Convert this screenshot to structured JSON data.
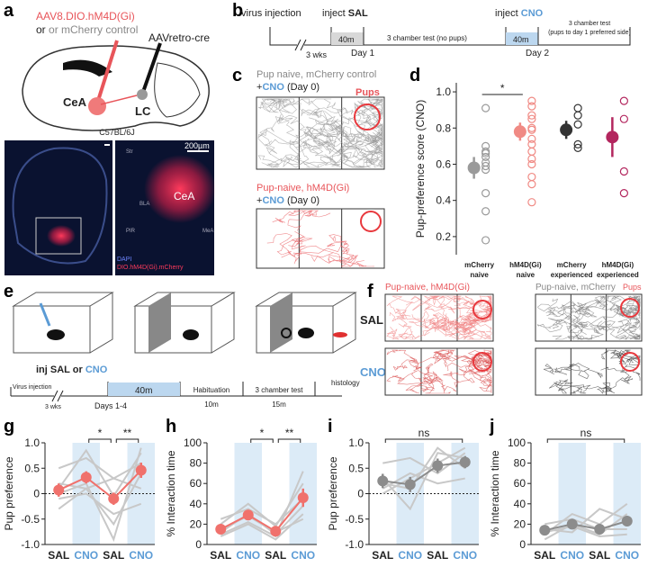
{
  "panel_labels": [
    "a",
    "b",
    "c",
    "d",
    "e",
    "f",
    "g",
    "h",
    "i",
    "j"
  ],
  "panel_a": {
    "virus": "AAV8.DIO.hM4D(Gi)",
    "control": "or mCherry control",
    "retro": "AAVretro-cre",
    "cea": "CeA",
    "lc": "LC",
    "strain": "C57BL/6J",
    "scale": "200µm",
    "str": "Str",
    "bla": "BLA",
    "cea2": "CeA",
    "pir": "PIR",
    "mea": "MeA",
    "dapi": "DAPI",
    "stain": "DIO.hM4D(Gi).mCherry"
  },
  "panel_b": {
    "virus_injection": "virus injection",
    "inject1": "inject ",
    "sal": "SAL",
    "wks": "3 wks",
    "m40a": "40m",
    "day1": "Day 1",
    "test1": "3 chamber test (no pups)",
    "inject2": "inject ",
    "cno": "CNO",
    "m40b": "40m",
    "day2": "Day 2",
    "test2a": "3 chamber test",
    "test2b": "(pups to day 1 preferred side)"
  },
  "panel_c": {
    "title1": "Pup naive, mCherry control",
    "plus1": "+",
    "cno1": "CNO",
    "day1": " (Day 0)",
    "pups": "Pups",
    "title2": "Pup-naive, hM4D(Gi)",
    "plus2": "+",
    "cno2": "CNO",
    "day2": " (Day 0)"
  },
  "panel_e": {
    "inj": "inj SAL or ",
    "cno": "CNO",
    "virus": "Virus injection",
    "wks": "3 wks",
    "m40": "40m",
    "days": "Days 1-4",
    "hab": "Habituation",
    "m10": "10m",
    "test": "3 chamber test",
    "m15": "15m",
    "hist": "histology"
  },
  "panel_f": {
    "title1": "Pup-naive, hM4D(Gi)",
    "title2": "Pup-naive, mCherry",
    "pups": "Pups",
    "sal": "SAL",
    "cno": "CNO"
  },
  "chart_data": [
    {
      "type": "strip",
      "ylabel": "Pup-preference score (CNO)",
      "categories": [
        [
          "mCherry",
          "naive"
        ],
        [
          "hM4D(Gi)",
          "naive"
        ],
        [
          "mCherry",
          "experienced"
        ],
        [
          "hM4D(Gi)",
          "experienced"
        ]
      ],
      "colors": [
        "#9a9a9a",
        "#f08a84",
        "#333333",
        "#b3265e"
      ],
      "means": [
        0.58,
        0.78,
        0.79,
        0.75
      ],
      "errors": [
        0.06,
        0.05,
        0.05,
        0.11
      ],
      "points": [
        [
          0.91,
          0.7,
          0.67,
          0.66,
          0.64,
          0.61,
          0.59,
          0.57,
          0.44,
          0.34,
          0.18
        ],
        [
          0.95,
          0.92,
          0.87,
          0.85,
          0.8,
          0.79,
          0.74,
          0.71,
          0.67,
          0.63,
          0.6,
          0.53,
          0.49,
          0.39
        ],
        [
          0.91,
          0.87,
          0.82,
          0.71,
          0.69
        ],
        [
          0.95,
          0.85,
          0.56,
          0.44
        ]
      ],
      "ylim": [
        0.1,
        1.05
      ],
      "yticks": [
        0.2,
        0.4,
        0.6,
        0.8,
        {
          "value": 1,
          "label": "1.0"
        }
      ],
      "annotations": [
        {
          "text": "*",
          "from": 0,
          "to": 1
        }
      ]
    },
    {
      "type": "paired",
      "ylabel": "Pup preference",
      "categories": [
        "SAL",
        "CNO",
        "SAL",
        "CNO"
      ],
      "category_colors": [
        "#222222",
        "#5b9bd5",
        "#222222",
        "#5b9bd5"
      ],
      "highlight_categories": [
        1,
        3
      ],
      "line_color": "#c8c8c8",
      "mean_color": "#f0716c",
      "lines": [
        [
          0.1,
          0.85,
          -0.05,
          0.8
        ],
        [
          0.5,
          0.7,
          0.3,
          0.6
        ],
        [
          -0.3,
          0.1,
          -0.6,
          0.4
        ],
        [
          0.0,
          0.2,
          -0.9,
          0.9
        ],
        [
          0.2,
          0.1,
          0.3,
          0.1
        ],
        [
          -0.1,
          0.0,
          -0.4,
          -0.2
        ]
      ],
      "means": [
        0.07,
        0.32,
        -0.1,
        0.46
      ],
      "errors": [
        0.13,
        0.12,
        0.12,
        0.15
      ],
      "ylim": [
        -1,
        1
      ],
      "yticks": [
        {
          "value": -1,
          "label": "-1.0"
        },
        -0.5,
        0,
        0.5,
        {
          "value": 1,
          "label": "1.0"
        }
      ],
      "reference_line": 0,
      "annotations": [
        {
          "text": "*",
          "from": 1,
          "to": 2
        },
        {
          "text": "**",
          "from": 2,
          "to": 3
        }
      ]
    },
    {
      "type": "paired",
      "ylabel": "% Interaction time",
      "categories": [
        "SAL",
        "CNO",
        "SAL",
        "CNO"
      ],
      "category_colors": [
        "#222222",
        "#5b9bd5",
        "#222222",
        "#5b9bd5"
      ],
      "highlight_categories": [
        1,
        3
      ],
      "line_color": "#c8c8c8",
      "mean_color": "#f0716c",
      "lines": [
        [
          10,
          22,
          8,
          72
        ],
        [
          20,
          40,
          18,
          60
        ],
        [
          12,
          30,
          10,
          38
        ],
        [
          25,
          35,
          20,
          45
        ],
        [
          8,
          20,
          5,
          30
        ],
        [
          15,
          28,
          12,
          25
        ]
      ],
      "means": [
        15,
        29,
        13,
        46
      ],
      "errors": [
        3,
        5,
        3,
        9
      ],
      "ylim": [
        0,
        100
      ],
      "yticks": [
        0,
        20,
        40,
        60,
        80,
        100
      ],
      "annotations": [
        {
          "text": "*",
          "from": 1,
          "to": 2
        },
        {
          "text": "**",
          "from": 2,
          "to": 3
        }
      ]
    },
    {
      "type": "paired",
      "ylabel": "Pup preference",
      "categories": [
        "SAL",
        "CNO",
        "SAL",
        "CNO"
      ],
      "category_colors": [
        "#222222",
        "#5b9bd5",
        "#222222",
        "#5b9bd5"
      ],
      "highlight_categories": [
        1,
        3
      ],
      "line_color": "#c8c8c8",
      "mean_color": "#8c8c8c",
      "lines": [
        [
          0.6,
          0.7,
          0.4,
          0.8
        ],
        [
          0.3,
          -0.3,
          0.8,
          0.7
        ],
        [
          0.0,
          0.3,
          0.6,
          0.9
        ],
        [
          0.2,
          0.1,
          0.9,
          0.5
        ],
        [
          0.1,
          0.4,
          0.2,
          0.3
        ]
      ],
      "means": [
        0.25,
        0.18,
        0.55,
        0.62
      ],
      "errors": [
        0.14,
        0.15,
        0.14,
        0.12
      ],
      "ylim": [
        -1,
        1
      ],
      "yticks": [
        {
          "value": -1,
          "label": "-1.0"
        },
        -0.5,
        0,
        0.5,
        {
          "value": 1,
          "label": "1.0"
        }
      ],
      "reference_line": 0,
      "annotations": [
        {
          "text": "ns",
          "from": 0,
          "to": 3
        }
      ]
    },
    {
      "type": "paired",
      "ylabel": "% Interaction time",
      "categories": [
        "SAL",
        "CNO",
        "SAL",
        "CNO"
      ],
      "category_colors": [
        "#222222",
        "#5b9bd5",
        "#222222",
        "#5b9bd5"
      ],
      "highlight_categories": [
        1,
        3
      ],
      "line_color": "#c8c8c8",
      "mean_color": "#8c8c8c",
      "lines": [
        [
          10,
          30,
          20,
          40
        ],
        [
          15,
          12,
          35,
          25
        ],
        [
          5,
          20,
          10,
          30
        ],
        [
          20,
          25,
          15,
          15
        ],
        [
          12,
          18,
          8,
          10
        ]
      ],
      "means": [
        14,
        20,
        15,
        23
      ],
      "errors": [
        4,
        5,
        4,
        5
      ],
      "ylim": [
        0,
        100
      ],
      "yticks": [
        0,
        20,
        40,
        60,
        80,
        100
      ],
      "annotations": [
        {
          "text": "ns",
          "from": 0,
          "to": 3
        }
      ]
    }
  ]
}
